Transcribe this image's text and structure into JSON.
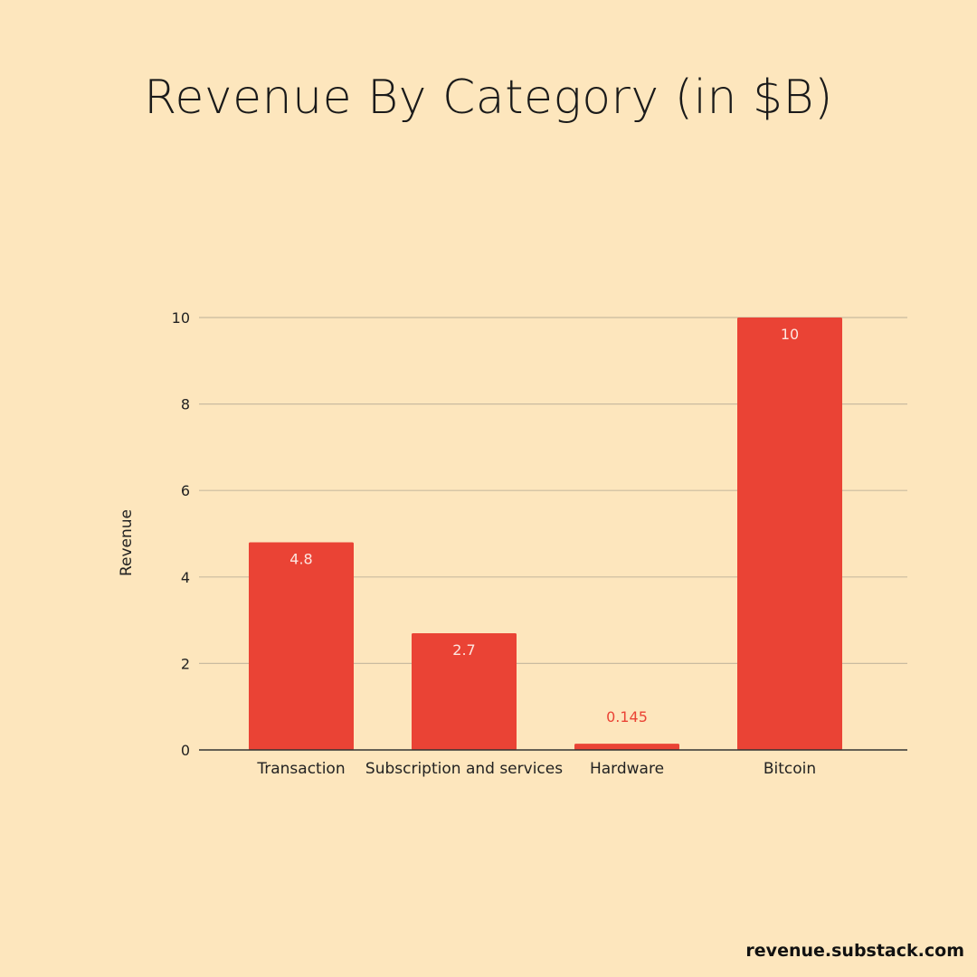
{
  "chart_data": {
    "type": "bar",
    "title": "Revenue By Category (in $B)",
    "xlabel": "",
    "ylabel": "Revenue",
    "categories": [
      "Transaction",
      "Subscription and services",
      "Hardware",
      "Bitcoin"
    ],
    "values": [
      4.8,
      2.7,
      0.145,
      10
    ],
    "data_labels": [
      "4.8",
      "2.7",
      "0.145",
      "10"
    ],
    "ylim": [
      0,
      10
    ],
    "yticks": [
      0,
      2,
      4,
      6,
      8,
      10
    ],
    "grid": true,
    "legend": "none",
    "colors": {
      "bar": "#ea4335",
      "grid": "#c9bba0",
      "axis": "#333333",
      "label_inside": "#fde6e0",
      "label_outside": "#ea4335"
    }
  },
  "footer": {
    "source": "revenue.substack.com"
  }
}
